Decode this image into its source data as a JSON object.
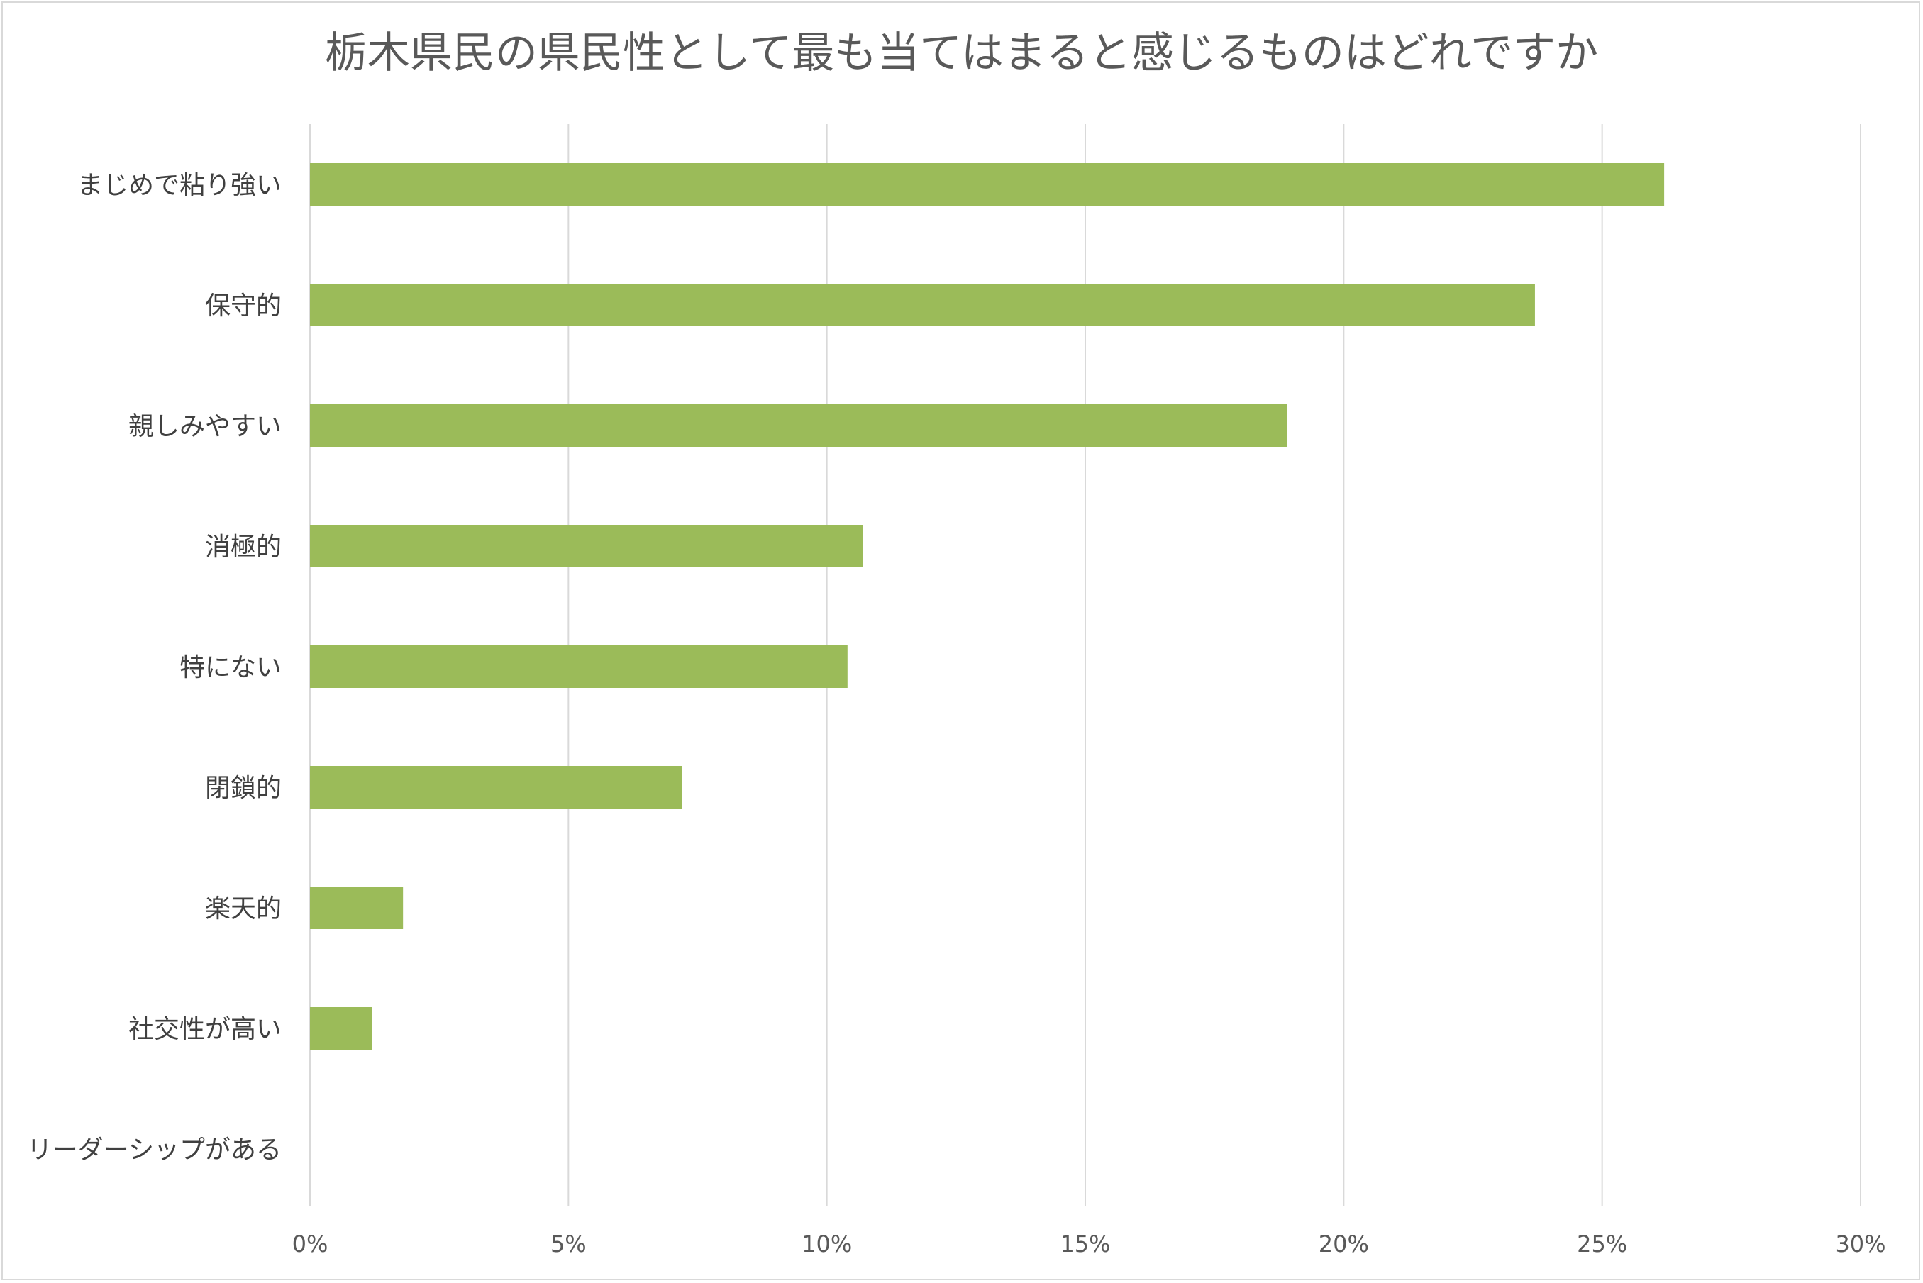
{
  "chart_data": {
    "type": "bar",
    "orientation": "horizontal",
    "title": "栃木県民の県民性として最も当てはまると感じるものはどれですか",
    "categories": [
      "まじめで粘り強い",
      "保守的",
      "親しみやすい",
      "消極的",
      "特にない",
      "閉鎖的",
      "楽天的",
      "社交性が高い",
      "リーダーシップがある"
    ],
    "values": [
      26.2,
      23.7,
      18.9,
      10.7,
      10.4,
      7.2,
      1.8,
      1.2,
      0
    ],
    "xlim": [
      0,
      30
    ],
    "x_ticks": [
      0,
      5,
      10,
      15,
      20,
      25,
      30
    ],
    "x_tick_labels": [
      "0%",
      "5%",
      "10%",
      "15%",
      "20%",
      "25%",
      "30%"
    ],
    "xlabel": "",
    "ylabel": "",
    "grid": "vertical",
    "legend": "none",
    "bar_color": "#9bbb59",
    "grid_color": "#d9d9d9"
  }
}
